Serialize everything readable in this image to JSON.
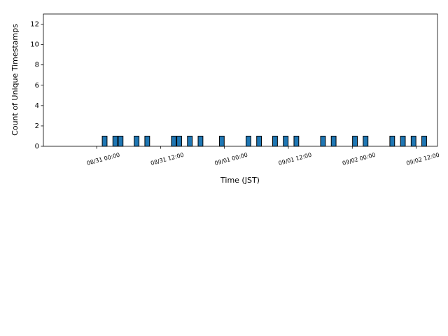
{
  "chart_data": {
    "type": "bar",
    "xlabel": "Time (JST)",
    "ylabel": "Count of Unique Timestamps",
    "x": [
      "08/31 01:30",
      "08/31 03:30",
      "08/31 04:30",
      "08/31 07:30",
      "08/31 09:30",
      "08/31 14:30",
      "08/31 15:30",
      "08/31 17:30",
      "08/31 19:30",
      "08/31 23:30",
      "09/01 04:30",
      "09/01 06:30",
      "09/01 09:30",
      "09/01 11:30",
      "09/01 13:30",
      "09/01 18:30",
      "09/01 20:30",
      "09/02 00:30",
      "09/02 02:30",
      "09/02 07:30",
      "09/02 09:30",
      "09/02 11:30",
      "09/02 13:30"
    ],
    "values": [
      1,
      1,
      1,
      1,
      1,
      1,
      1,
      1,
      1,
      1,
      1,
      1,
      1,
      1,
      1,
      1,
      1,
      1,
      1,
      1,
      1,
      1,
      1
    ],
    "color": "#1f77b4",
    "xlim": [
      "08/30 14:00",
      "09/02 16:00"
    ],
    "xticks": [
      "08/31 00:00",
      "08/31 12:00",
      "09/01 00:00",
      "09/01 12:00",
      "09/02 00:00",
      "09/02 12:00"
    ],
    "ylim": [
      0,
      13
    ],
    "yticks": [
      0,
      2,
      4,
      6,
      8,
      10,
      12
    ],
    "grid": false
  }
}
